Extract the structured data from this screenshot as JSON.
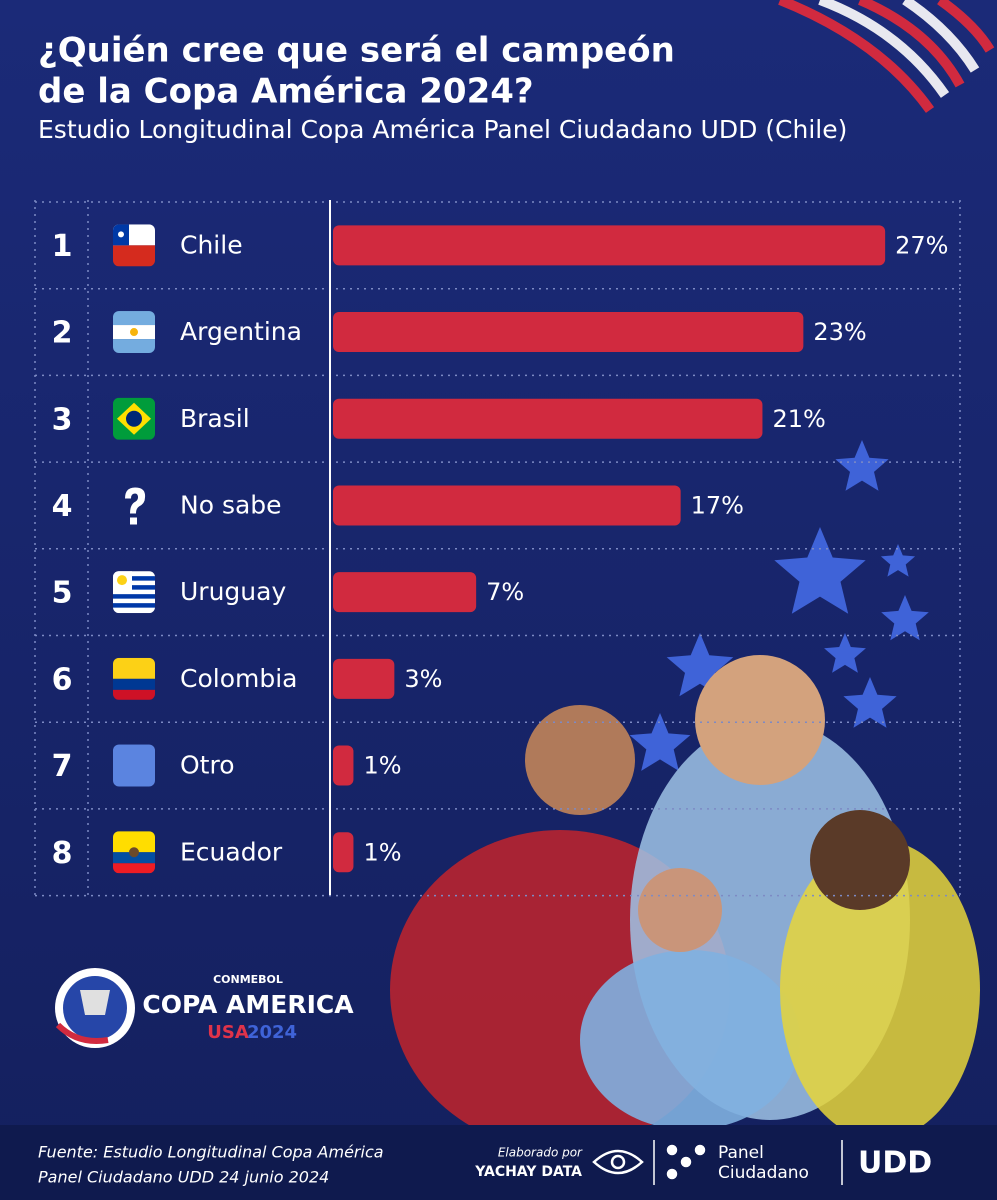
{
  "chart_data": {
    "type": "bar",
    "orientation": "horizontal",
    "title": [
      "¿Quién cree que será el campeón",
      "de la Copa América 2024?"
    ],
    "subtitle": "Estudio Longitudinal Copa América Panel Ciudadano UDD (Chile)",
    "ranks": [
      "1",
      "2",
      "3",
      "4",
      "5",
      "6",
      "7",
      "8"
    ],
    "categories": [
      "Chile",
      "Argentina",
      "Brasil",
      "No sabe",
      "Uruguay",
      "Colombia",
      "Otro",
      "Ecuador"
    ],
    "values": [
      27,
      23,
      21,
      17,
      7,
      3,
      1,
      1
    ],
    "value_labels": [
      "27%",
      "23%",
      "21%",
      "17%",
      "7%",
      "3%",
      "1%",
      "1%"
    ],
    "color": "#d12a3f",
    "source": [
      "Fuente: Estudio Longitudinal Copa América",
      "Panel Ciudadano UDD 24 junio 2024"
    ]
  },
  "logos": {
    "tournament": [
      "CONMEBOL",
      "COPA AMERICA",
      "USA",
      "2024"
    ],
    "credits": [
      "Elaborado por",
      "YACHAY DATA",
      "Panel",
      "Ciudadano",
      "UDD"
    ]
  }
}
